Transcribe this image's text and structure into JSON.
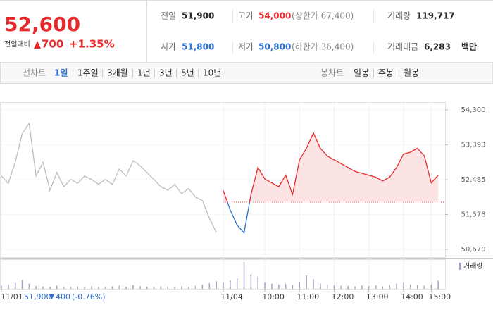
{
  "quote": {
    "price": "52,600",
    "change_label": "전일대비",
    "change": "700",
    "change_rate": "+1.35%"
  },
  "stats": [
    {
      "label": "전일",
      "value": "51,900"
    },
    {
      "label": "고가",
      "value": "54,000",
      "note": "(상한가 67,400)"
    },
    {
      "label": "거래량",
      "value": "119,717"
    },
    {
      "label": "시가",
      "value": "51,800"
    },
    {
      "label": "저가",
      "value": "50,800",
      "note": "(하한가 36,400)"
    },
    {
      "label": "거래대금",
      "value": "6,283",
      "unit": "백만"
    }
  ],
  "tabs": {
    "line_label": "선차트",
    "line": [
      "1일",
      "1주일",
      "3개월",
      "1년",
      "3년",
      "5년",
      "10년"
    ],
    "selected": "1일",
    "candle_label": "봉차트",
    "candle": [
      "일봉",
      "주봉",
      "월봉"
    ]
  },
  "chart_data": {
    "type": "line",
    "categories": [
      "11/01",
      null,
      null,
      null,
      null,
      null,
      null,
      null,
      null,
      null,
      null,
      null,
      null,
      null,
      null,
      null,
      null,
      null,
      null,
      null,
      null,
      null,
      null,
      null,
      null,
      null,
      null,
      null,
      null,
      null,
      null,
      null,
      "11/04",
      null,
      null,
      null,
      null,
      null,
      "10:00",
      null,
      null,
      null,
      null,
      "11:00",
      null,
      null,
      null,
      null,
      "12:00",
      null,
      null,
      null,
      null,
      "13:00",
      null,
      null,
      null,
      null,
      "14:00",
      null,
      null,
      null,
      "15:00",
      null
    ],
    "series": [
      {
        "color": "#bdbdbd",
        "values": [
          52580,
          52390,
          52940,
          53680,
          53950,
          52580,
          52940,
          52210,
          52670,
          52300,
          52490,
          52390,
          52580,
          52490,
          52360,
          52490,
          52360,
          52760,
          52580,
          52980,
          52850,
          52670,
          52490,
          52300,
          52210,
          52360,
          52120,
          52250,
          52030,
          51940,
          51480,
          51110,
          null,
          null,
          null,
          null,
          null,
          null,
          null,
          null,
          null,
          null,
          null,
          null,
          null,
          null,
          null,
          null,
          null,
          null,
          null,
          null,
          null,
          null,
          null,
          null,
          null,
          null,
          null,
          null,
          null,
          null,
          null,
          null
        ]
      },
      {
        "color": "#e8282b",
        "values": [
          null,
          null,
          null,
          null,
          null,
          null,
          null,
          null,
          null,
          null,
          null,
          null,
          null,
          null,
          null,
          null,
          null,
          null,
          null,
          null,
          null,
          null,
          null,
          null,
          null,
          null,
          null,
          null,
          null,
          null,
          null,
          null,
          52200,
          51700,
          51300,
          51100,
          52100,
          52800,
          52500,
          52400,
          52300,
          52600,
          52100,
          53000,
          53300,
          53700,
          53300,
          53100,
          53000,
          52900,
          52800,
          52700,
          52650,
          52600,
          52550,
          52450,
          52550,
          52800,
          53150,
          53200,
          53300,
          53100,
          52400,
          52600
        ]
      }
    ],
    "down_color": "#2c6fcf",
    "baseline": 51900,
    "ylim": [
      50470,
      54500
    ],
    "yticks": [
      {
        "value": 54300,
        "label": "54,300"
      },
      {
        "value": 53393,
        "label": "53,393"
      },
      {
        "value": 52485,
        "label": "52,485"
      },
      {
        "value": 51578,
        "label": "51,578"
      },
      {
        "value": 50670,
        "label": "50,670"
      }
    ],
    "volume": {
      "name": "거래량",
      "color": "#a99ec4",
      "values": [
        900,
        1200,
        1800,
        2600,
        1500,
        800,
        700,
        600,
        900,
        500,
        600,
        700,
        500,
        800,
        600,
        500,
        700,
        900,
        600,
        1100,
        800,
        600,
        500,
        700,
        600,
        500,
        800,
        600,
        900,
        1200,
        1600,
        2200,
        1800,
        2400,
        3000,
        7800,
        4200,
        3600,
        1800,
        1500,
        1200,
        1400,
        1100,
        2000,
        3900,
        2800,
        1600,
        1200,
        1000,
        900,
        800,
        700,
        900,
        800,
        1000,
        700,
        900,
        1500,
        1800,
        1300,
        1100,
        900,
        1200,
        2400
      ]
    },
    "info": {
      "close": "51,900",
      "change": "400",
      "change_rate": "(-0.76%)"
    }
  }
}
